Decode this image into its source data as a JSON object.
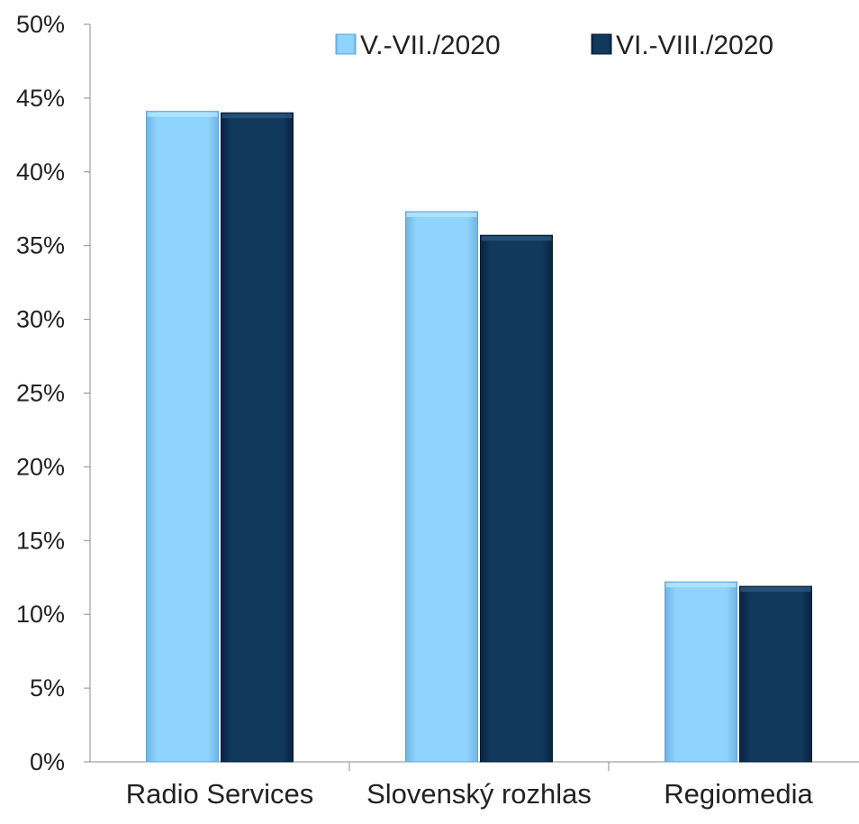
{
  "chart_data": {
    "type": "bar",
    "categories": [
      "Radio Services",
      "Slovenský rozhlas",
      "Regiomedia"
    ],
    "series": [
      {
        "name": "V.-VII./2020",
        "values": [
          44.1,
          37.3,
          12.2
        ]
      },
      {
        "name": "VI.-VIII./2020",
        "values": [
          44.0,
          35.7,
          11.9
        ]
      }
    ],
    "ylim": [
      0,
      50
    ],
    "y_ticks": [
      "0%",
      "5%",
      "10%",
      "15%",
      "20%",
      "25%",
      "30%",
      "35%",
      "40%",
      "45%",
      "50%"
    ],
    "y_tick_values": [
      0,
      5,
      10,
      15,
      20,
      25,
      30,
      35,
      40,
      45,
      50
    ],
    "grid": false,
    "legend_position": "top-right",
    "colors": [
      "#87cdfb",
      "#0e3558"
    ]
  }
}
